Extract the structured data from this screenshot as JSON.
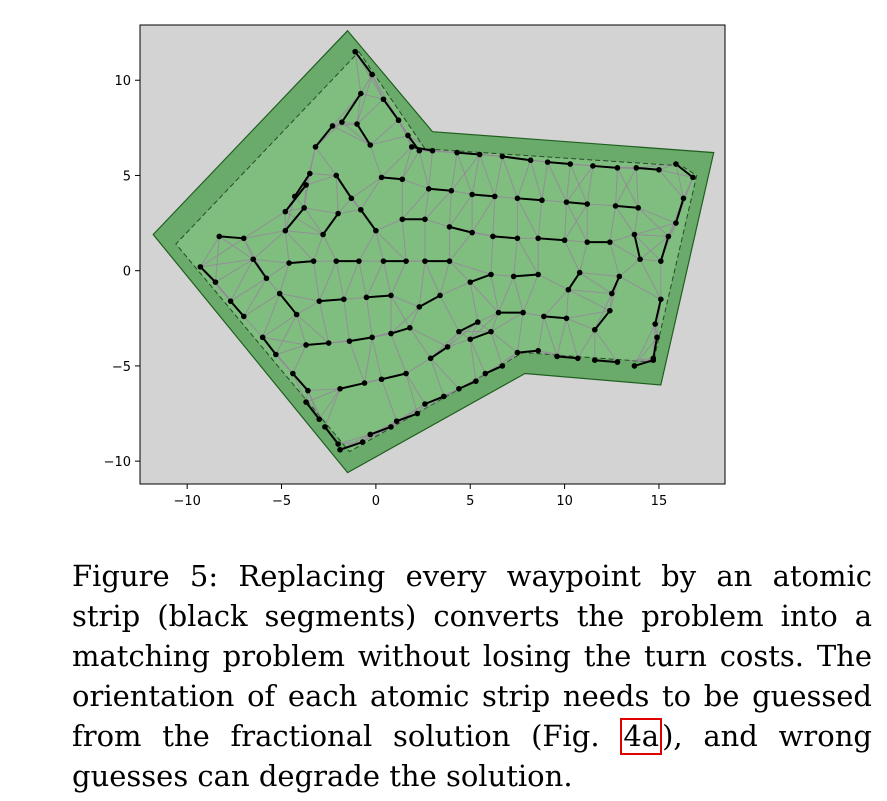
{
  "chart_data": {
    "type": "diagram",
    "xlim": [
      -12.5,
      18.5
    ],
    "ylim": [
      -11.2,
      12.9
    ],
    "xticks": [
      -10,
      -5,
      0,
      5,
      10,
      15
    ],
    "yticks": [
      -10,
      -5,
      0,
      5,
      10
    ],
    "xtick_labels": [
      "−10",
      "−5",
      "0",
      "5",
      "10",
      "15"
    ],
    "ytick_labels": [
      "−10",
      "−5",
      "0",
      "5",
      "10"
    ],
    "colors": {
      "background": "#d3d3d3",
      "outer_region": "#6aaa6a",
      "inner_region": "#7fbe7f",
      "mesh": "#9a7fa0",
      "strips": "#000000",
      "border": "#1f5f1f"
    },
    "outer_polygon": [
      [
        -1.5,
        12.6
      ],
      [
        3.0,
        7.3
      ],
      [
        17.9,
        6.2
      ],
      [
        15.1,
        -6.0
      ],
      [
        7.9,
        -5.4
      ],
      [
        -1.5,
        -10.6
      ],
      [
        -11.8,
        1.9
      ]
    ],
    "inner_polygon": [
      [
        -0.9,
        11.5
      ],
      [
        2.6,
        6.4
      ],
      [
        16.2,
        5.5
      ],
      [
        17.0,
        5.0
      ],
      [
        14.7,
        -4.8
      ],
      [
        7.8,
        -4.3
      ],
      [
        -1.4,
        -9.5
      ],
      [
        -10.6,
        1.4
      ]
    ],
    "strips": [
      [
        [
          -1.1,
          11.5
        ],
        [
          -0.2,
          10.3
        ]
      ],
      [
        [
          0.4,
          9.0
        ],
        [
          1.2,
          7.9
        ]
      ],
      [
        [
          1.7,
          7.1
        ],
        [
          2.3,
          6.3
        ]
      ],
      [
        [
          -1.0,
          7.7
        ],
        [
          -0.3,
          6.6
        ]
      ],
      [
        [
          1.9,
          6.5
        ],
        [
          3.0,
          6.3
        ]
      ],
      [
        [
          4.3,
          6.2
        ],
        [
          5.5,
          6.1
        ]
      ],
      [
        [
          6.7,
          6.0
        ],
        [
          8.2,
          5.8
        ]
      ],
      [
        [
          9.1,
          5.7
        ],
        [
          10.3,
          5.6
        ]
      ],
      [
        [
          11.5,
          5.5
        ],
        [
          12.8,
          5.4
        ]
      ],
      [
        [
          13.8,
          5.4
        ],
        [
          15.0,
          5.3
        ]
      ],
      [
        [
          15.9,
          5.6
        ],
        [
          16.8,
          4.9
        ]
      ],
      [
        [
          0.3,
          4.9
        ],
        [
          1.4,
          4.8
        ]
      ],
      [
        [
          2.8,
          4.3
        ],
        [
          4.0,
          4.2
        ]
      ],
      [
        [
          5.1,
          4.0
        ],
        [
          6.3,
          3.9
        ]
      ],
      [
        [
          7.5,
          3.8
        ],
        [
          8.8,
          3.7
        ]
      ],
      [
        [
          10.1,
          3.6
        ],
        [
          11.2,
          3.5
        ]
      ],
      [
        [
          12.7,
          3.4
        ],
        [
          13.9,
          3.3
        ]
      ],
      [
        [
          16.3,
          3.8
        ],
        [
          15.9,
          2.5
        ]
      ],
      [
        [
          -2.1,
          5.0
        ],
        [
          -1.3,
          3.8
        ]
      ],
      [
        [
          -0.8,
          3.2
        ],
        [
          0.0,
          2.1
        ]
      ],
      [
        [
          1.4,
          2.7
        ],
        [
          2.6,
          2.7
        ]
      ],
      [
        [
          3.9,
          2.3
        ],
        [
          5.1,
          2.0
        ]
      ],
      [
        [
          6.2,
          1.8
        ],
        [
          7.5,
          1.7
        ]
      ],
      [
        [
          8.6,
          1.7
        ],
        [
          10.0,
          1.6
        ]
      ],
      [
        [
          11.2,
          1.5
        ],
        [
          12.4,
          1.5
        ]
      ],
      [
        [
          13.7,
          1.9
        ],
        [
          14.0,
          0.6
        ]
      ],
      [
        [
          15.5,
          1.8
        ],
        [
          15.1,
          0.5
        ]
      ],
      [
        [
          -4.8,
          3.1
        ],
        [
          -3.7,
          4.5
        ]
      ],
      [
        [
          -3.5,
          5.1
        ],
        [
          -4.3,
          3.9
        ]
      ],
      [
        [
          -4.8,
          2.1
        ],
        [
          -3.8,
          3.3
        ]
      ],
      [
        [
          -2.8,
          1.9
        ],
        [
          -2.0,
          3.0
        ]
      ],
      [
        [
          -3.2,
          6.5
        ],
        [
          -2.3,
          7.6
        ]
      ],
      [
        [
          -1.8,
          7.8
        ],
        [
          -0.8,
          9.3
        ]
      ],
      [
        [
          -8.3,
          1.8
        ],
        [
          -7.0,
          1.7
        ]
      ],
      [
        [
          -6.5,
          0.6
        ],
        [
          -5.8,
          -0.4
        ]
      ],
      [
        [
          -4.6,
          0.4
        ],
        [
          -3.3,
          0.5
        ]
      ],
      [
        [
          -2.1,
          0.5
        ],
        [
          -0.9,
          0.5
        ]
      ],
      [
        [
          0.4,
          0.5
        ],
        [
          1.6,
          0.5
        ]
      ],
      [
        [
          2.6,
          0.5
        ],
        [
          3.9,
          0.5
        ]
      ],
      [
        [
          -5.1,
          -1.2
        ],
        [
          -4.2,
          -2.3
        ]
      ],
      [
        [
          -3.0,
          -1.6
        ],
        [
          -1.7,
          -1.5
        ]
      ],
      [
        [
          -0.5,
          -1.4
        ],
        [
          0.8,
          -1.3
        ]
      ],
      [
        [
          2.3,
          -1.9
        ],
        [
          3.4,
          -1.3
        ]
      ],
      [
        [
          5.0,
          -0.6
        ],
        [
          6.1,
          -0.2
        ]
      ],
      [
        [
          7.3,
          -0.3
        ],
        [
          8.6,
          -0.2
        ]
      ],
      [
        [
          10.2,
          -1.0
        ],
        [
          10.8,
          -0.1
        ]
      ],
      [
        [
          12.9,
          -0.3
        ],
        [
          12.5,
          -1.2
        ]
      ],
      [
        [
          11.6,
          -3.1
        ],
        [
          12.4,
          -2.1
        ]
      ],
      [
        [
          15.1,
          -1.5
        ],
        [
          14.8,
          -2.8
        ]
      ],
      [
        [
          -9.3,
          0.2
        ],
        [
          -8.5,
          -0.6
        ]
      ],
      [
        [
          -7.7,
          -1.6
        ],
        [
          -7.0,
          -2.4
        ]
      ],
      [
        [
          -6.0,
          -3.5
        ],
        [
          -5.3,
          -4.4
        ]
      ],
      [
        [
          -3.7,
          -3.9
        ],
        [
          -2.5,
          -3.8
        ]
      ],
      [
        [
          -1.4,
          -3.7
        ],
        [
          -0.2,
          -3.5
        ]
      ],
      [
        [
          0.8,
          -3.3
        ],
        [
          1.8,
          -3.0
        ]
      ],
      [
        [
          4.4,
          -3.2
        ],
        [
          5.4,
          -2.7
        ]
      ],
      [
        [
          6.5,
          -2.2
        ],
        [
          7.8,
          -2.2
        ]
      ],
      [
        [
          8.9,
          -2.4
        ],
        [
          10.1,
          -2.5
        ]
      ],
      [
        [
          14.7,
          -4.6
        ],
        [
          14.9,
          -3.5
        ]
      ],
      [
        [
          13.7,
          -5.0
        ],
        [
          14.7,
          -4.7
        ]
      ],
      [
        [
          -4.4,
          -5.4
        ],
        [
          -3.6,
          -6.3
        ]
      ],
      [
        [
          -1.9,
          -6.2
        ],
        [
          -0.6,
          -5.9
        ]
      ],
      [
        [
          0.3,
          -5.7
        ],
        [
          1.6,
          -5.4
        ]
      ],
      [
        [
          2.9,
          -4.6
        ],
        [
          3.8,
          -4.0
        ]
      ],
      [
        [
          5.0,
          -3.6
        ],
        [
          6.1,
          -3.2
        ]
      ],
      [
        [
          7.5,
          -4.3
        ],
        [
          8.6,
          -4.2
        ]
      ],
      [
        [
          9.6,
          -4.5
        ],
        [
          10.7,
          -4.6
        ]
      ],
      [
        [
          11.6,
          -4.7
        ],
        [
          12.8,
          -4.8
        ]
      ],
      [
        [
          -1.9,
          -9.4
        ],
        [
          -0.7,
          -9.0
        ]
      ],
      [
        [
          -0.3,
          -8.6
        ],
        [
          0.8,
          -8.2
        ]
      ],
      [
        [
          1.1,
          -7.9
        ],
        [
          2.2,
          -7.5
        ]
      ],
      [
        [
          2.6,
          -7.0
        ],
        [
          3.6,
          -6.6
        ]
      ],
      [
        [
          4.4,
          -6.2
        ],
        [
          5.3,
          -5.8
        ]
      ],
      [
        [
          5.8,
          -5.4
        ],
        [
          6.7,
          -5.0
        ]
      ],
      [
        [
          -2.7,
          -8.2
        ],
        [
          -2.0,
          -9.1
        ]
      ],
      [
        [
          -3.7,
          -6.9
        ],
        [
          -3.0,
          -7.8
        ]
      ]
    ]
  },
  "caption": {
    "label": "Figure 5:",
    "text_before_ref": "Replacing every waypoint by an atomic strip (black segments) converts the problem into a matching problem without losing the turn costs. The orientation of each atomic strip needs to be guessed from the fractional solution (Fig.",
    "ref": "4a",
    "text_after_ref": "), and wrong guesses can degrade the solution."
  }
}
